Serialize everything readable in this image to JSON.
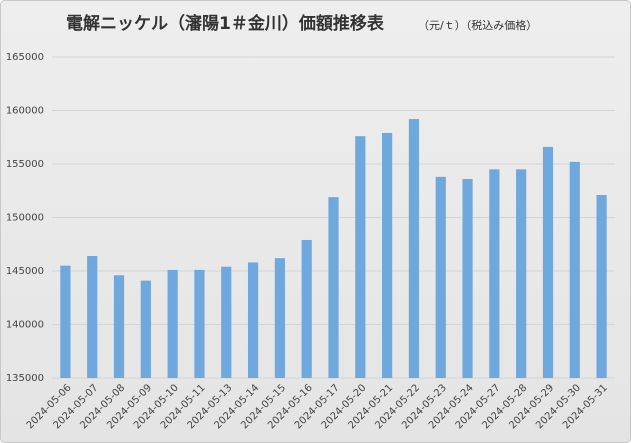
{
  "chart_data": {
    "type": "bar",
    "title": "電解ニッケル（瀋陽1＃金川）価額推移表",
    "subtitle": "（元/ｔ）（税込み価格）",
    "categories": [
      "2024-05-06",
      "2024-05-07",
      "2024-05-08",
      "2024-05-09",
      "2024-05-10",
      "2024-05-11",
      "2024-05-13",
      "2024-05-14",
      "2024-05-15",
      "2024-05-16",
      "2024-05-17",
      "2024-05-20",
      "2024-05-21",
      "2024-05-22",
      "2024-05-23",
      "2024-05-24",
      "2024-05-27",
      "2024-05-28",
      "2024-05-29",
      "2024-05-30",
      "2024-05-31"
    ],
    "values": [
      145500,
      146400,
      144600,
      144100,
      145100,
      145100,
      145400,
      145800,
      146200,
      147900,
      151900,
      157600,
      157900,
      159200,
      153800,
      153600,
      154500,
      154500,
      156600,
      155200,
      152100
    ],
    "color": "#6fa8dc",
    "ylim": [
      135000,
      165000
    ],
    "yticks": [
      135000,
      140000,
      145000,
      150000,
      155000,
      160000,
      165000
    ],
    "grid": true
  }
}
